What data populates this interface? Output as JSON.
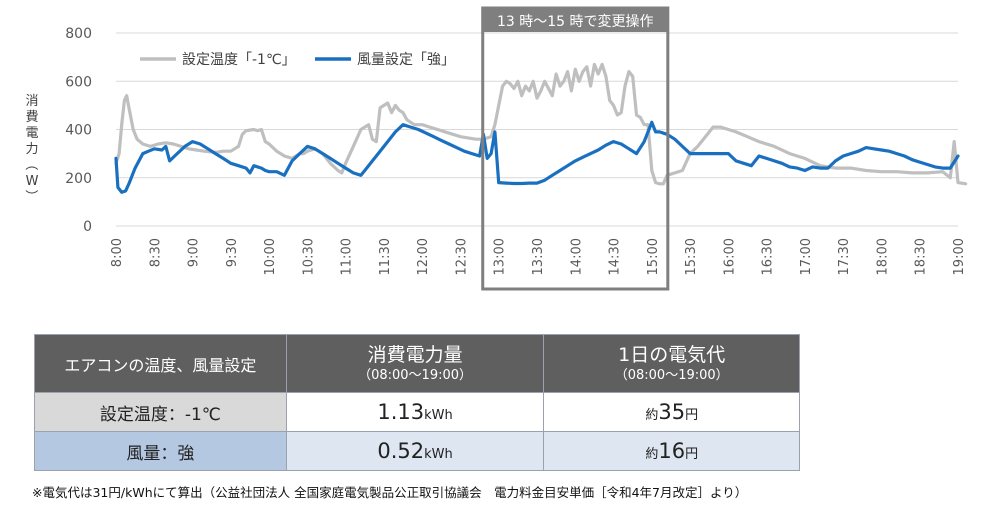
{
  "chart_data": {
    "type": "line",
    "ylabel": "消費電力（W）",
    "ylim": [
      0,
      800
    ],
    "yticks": [
      0,
      200,
      400,
      600,
      800
    ],
    "grid": true,
    "legend_placement": "top-left",
    "categories": [
      "8:00",
      "8:30",
      "9:00",
      "9:30",
      "10:00",
      "10:30",
      "11:00",
      "11:30",
      "12:00",
      "12:30",
      "13:00",
      "13:30",
      "14:00",
      "14:30",
      "15:00",
      "15:30",
      "16:00",
      "16:30",
      "17:00",
      "17:30",
      "18:00",
      "18:30",
      "19:00"
    ],
    "annotation": "13 時～15 時で変更操作",
    "annotation_range": [
      "13:00",
      "15:00"
    ],
    "series": [
      {
        "name": "設定温度「-1℃」",
        "color": "#bfbfbf",
        "points": [
          [
            0,
            260
          ],
          [
            0.08,
            300
          ],
          [
            0.15,
            420
          ],
          [
            0.22,
            520
          ],
          [
            0.28,
            540
          ],
          [
            0.35,
            480
          ],
          [
            0.45,
            400
          ],
          [
            0.55,
            360
          ],
          [
            0.7,
            340
          ],
          [
            0.9,
            330
          ],
          [
            1.1,
            340
          ],
          [
            1.3,
            345
          ],
          [
            1.5,
            340
          ],
          [
            1.7,
            330
          ],
          [
            1.9,
            320
          ],
          [
            2.1,
            315
          ],
          [
            2.3,
            310
          ],
          [
            2.6,
            305
          ],
          [
            2.8,
            310
          ],
          [
            3.0,
            310
          ],
          [
            3.2,
            330
          ],
          [
            3.3,
            380
          ],
          [
            3.4,
            395
          ],
          [
            3.6,
            400
          ],
          [
            3.7,
            395
          ],
          [
            3.8,
            400
          ],
          [
            3.9,
            350
          ],
          [
            4.0,
            340
          ],
          [
            4.2,
            310
          ],
          [
            4.4,
            290
          ],
          [
            4.6,
            280
          ],
          [
            4.8,
            300
          ],
          [
            4.9,
            300
          ],
          [
            5.0,
            310
          ],
          [
            5.2,
            320
          ],
          [
            5.4,
            300
          ],
          [
            5.6,
            260
          ],
          [
            5.8,
            230
          ],
          [
            5.9,
            220
          ],
          [
            6.0,
            260
          ],
          [
            6.2,
            330
          ],
          [
            6.4,
            400
          ],
          [
            6.6,
            420
          ],
          [
            6.7,
            360
          ],
          [
            6.8,
            350
          ],
          [
            6.9,
            490
          ],
          [
            7.0,
            500
          ],
          [
            7.1,
            510
          ],
          [
            7.2,
            470
          ],
          [
            7.3,
            500
          ],
          [
            7.4,
            480
          ],
          [
            7.5,
            470
          ],
          [
            7.6,
            440
          ],
          [
            7.7,
            430
          ],
          [
            7.8,
            420
          ],
          [
            8.0,
            420
          ],
          [
            8.2,
            410
          ],
          [
            8.5,
            395
          ],
          [
            8.8,
            380
          ],
          [
            9.0,
            370
          ],
          [
            9.2,
            365
          ],
          [
            9.4,
            360
          ],
          [
            9.6,
            360
          ],
          [
            9.8,
            370
          ],
          [
            9.9,
            420
          ],
          [
            10.0,
            500
          ],
          [
            10.1,
            580
          ],
          [
            10.2,
            600
          ],
          [
            10.3,
            590
          ],
          [
            10.4,
            570
          ],
          [
            10.5,
            600
          ],
          [
            10.6,
            540
          ],
          [
            10.7,
            580
          ],
          [
            10.8,
            560
          ],
          [
            10.9,
            600
          ],
          [
            11.0,
            530
          ],
          [
            11.1,
            560
          ],
          [
            11.2,
            600
          ],
          [
            11.3,
            570
          ],
          [
            11.4,
            540
          ],
          [
            11.5,
            630
          ],
          [
            11.6,
            580
          ],
          [
            11.7,
            600
          ],
          [
            11.8,
            640
          ],
          [
            11.9,
            560
          ],
          [
            12.0,
            650
          ],
          [
            12.1,
            600
          ],
          [
            12.2,
            640
          ],
          [
            12.3,
            660
          ],
          [
            12.4,
            580
          ],
          [
            12.5,
            670
          ],
          [
            12.6,
            630
          ],
          [
            12.7,
            670
          ],
          [
            12.8,
            620
          ],
          [
            12.9,
            520
          ],
          [
            13.0,
            500
          ],
          [
            13.1,
            460
          ],
          [
            13.2,
            470
          ],
          [
            13.3,
            580
          ],
          [
            13.4,
            640
          ],
          [
            13.5,
            620
          ],
          [
            13.6,
            460
          ],
          [
            13.7,
            450
          ],
          [
            13.8,
            420
          ],
          [
            13.9,
            420
          ],
          [
            14.0,
            230
          ],
          [
            14.1,
            180
          ],
          [
            14.2,
            175
          ],
          [
            14.3,
            175
          ],
          [
            14.4,
            210
          ],
          [
            14.6,
            220
          ],
          [
            14.8,
            230
          ],
          [
            15.0,
            300
          ],
          [
            15.2,
            330
          ],
          [
            15.4,
            370
          ],
          [
            15.6,
            410
          ],
          [
            15.8,
            410
          ],
          [
            16.0,
            400
          ],
          [
            16.2,
            390
          ],
          [
            16.5,
            370
          ],
          [
            16.8,
            350
          ],
          [
            17.2,
            330
          ],
          [
            17.6,
            300
          ],
          [
            18.0,
            280
          ],
          [
            18.4,
            250
          ],
          [
            18.8,
            240
          ],
          [
            19.2,
            240
          ],
          [
            19.6,
            230
          ],
          [
            20.0,
            225
          ],
          [
            20.4,
            225
          ],
          [
            20.8,
            220
          ],
          [
            21.2,
            220
          ],
          [
            21.6,
            225
          ],
          [
            21.8,
            200
          ],
          [
            21.9,
            350
          ],
          [
            22.0,
            180
          ],
          [
            22.2,
            175
          ]
        ]
      },
      {
        "name": "風量設定「強」",
        "color": "#1a70c0",
        "points": [
          [
            0,
            280
          ],
          [
            0.05,
            160
          ],
          [
            0.15,
            140
          ],
          [
            0.25,
            145
          ],
          [
            0.35,
            180
          ],
          [
            0.5,
            240
          ],
          [
            0.7,
            300
          ],
          [
            0.85,
            310
          ],
          [
            1.0,
            320
          ],
          [
            1.2,
            315
          ],
          [
            1.3,
            330
          ],
          [
            1.4,
            270
          ],
          [
            1.6,
            300
          ],
          [
            1.8,
            330
          ],
          [
            2.0,
            350
          ],
          [
            2.2,
            340
          ],
          [
            2.4,
            320
          ],
          [
            2.6,
            300
          ],
          [
            2.8,
            280
          ],
          [
            3.0,
            260
          ],
          [
            3.2,
            250
          ],
          [
            3.4,
            240
          ],
          [
            3.5,
            220
          ],
          [
            3.6,
            250
          ],
          [
            3.8,
            240
          ],
          [
            3.9,
            230
          ],
          [
            4.0,
            225
          ],
          [
            4.2,
            225
          ],
          [
            4.4,
            210
          ],
          [
            4.6,
            270
          ],
          [
            4.8,
            300
          ],
          [
            5.0,
            330
          ],
          [
            5.2,
            320
          ],
          [
            5.4,
            300
          ],
          [
            5.6,
            280
          ],
          [
            5.8,
            260
          ],
          [
            6.0,
            240
          ],
          [
            6.2,
            220
          ],
          [
            6.4,
            210
          ],
          [
            6.5,
            230
          ],
          [
            6.7,
            270
          ],
          [
            6.9,
            310
          ],
          [
            7.1,
            350
          ],
          [
            7.3,
            390
          ],
          [
            7.5,
            420
          ],
          [
            7.7,
            410
          ],
          [
            7.9,
            400
          ],
          [
            8.1,
            385
          ],
          [
            8.3,
            370
          ],
          [
            8.5,
            355
          ],
          [
            8.7,
            340
          ],
          [
            8.9,
            325
          ],
          [
            9.1,
            310
          ],
          [
            9.3,
            300
          ],
          [
            9.5,
            290
          ],
          [
            9.6,
            380
          ],
          [
            9.7,
            280
          ],
          [
            9.8,
            300
          ],
          [
            9.9,
            390
          ],
          [
            10.0,
            180
          ],
          [
            10.2,
            178
          ],
          [
            10.4,
            176
          ],
          [
            10.6,
            176
          ],
          [
            10.8,
            178
          ],
          [
            11.0,
            178
          ],
          [
            11.2,
            190
          ],
          [
            11.4,
            210
          ],
          [
            11.6,
            230
          ],
          [
            11.8,
            250
          ],
          [
            12.0,
            270
          ],
          [
            12.2,
            285
          ],
          [
            12.4,
            300
          ],
          [
            12.6,
            315
          ],
          [
            12.8,
            335
          ],
          [
            13.0,
            350
          ],
          [
            13.2,
            340
          ],
          [
            13.4,
            320
          ],
          [
            13.6,
            300
          ],
          [
            13.8,
            350
          ],
          [
            14.0,
            430
          ],
          [
            14.1,
            390
          ],
          [
            14.2,
            390
          ],
          [
            14.4,
            380
          ],
          [
            14.6,
            360
          ],
          [
            14.8,
            330
          ],
          [
            15.0,
            300
          ],
          [
            15.2,
            300
          ],
          [
            15.4,
            300
          ],
          [
            15.6,
            300
          ],
          [
            15.8,
            300
          ],
          [
            16.0,
            300
          ],
          [
            16.2,
            270
          ],
          [
            16.4,
            260
          ],
          [
            16.6,
            250
          ],
          [
            16.8,
            290
          ],
          [
            17.0,
            280
          ],
          [
            17.2,
            270
          ],
          [
            17.4,
            260
          ],
          [
            17.6,
            245
          ],
          [
            17.8,
            240
          ],
          [
            18.0,
            230
          ],
          [
            18.2,
            245
          ],
          [
            18.4,
            240
          ],
          [
            18.6,
            240
          ],
          [
            18.8,
            270
          ],
          [
            19.0,
            290
          ],
          [
            19.2,
            300
          ],
          [
            19.4,
            310
          ],
          [
            19.6,
            325
          ],
          [
            19.8,
            320
          ],
          [
            20.0,
            315
          ],
          [
            20.2,
            310
          ],
          [
            20.4,
            300
          ],
          [
            20.6,
            290
          ],
          [
            20.8,
            275
          ],
          [
            21.0,
            265
          ],
          [
            21.2,
            255
          ],
          [
            21.4,
            245
          ],
          [
            21.6,
            240
          ],
          [
            21.8,
            240
          ],
          [
            22.0,
            290
          ]
        ]
      }
    ]
  },
  "table": {
    "header": {
      "col1": "エアコンの温度、風量設定",
      "col2_main": "消費電力量",
      "col2_sub": "（08:00～19:00）",
      "col3_main": "1日の電気代",
      "col3_sub": "（08:00～19:00）"
    },
    "rows": [
      {
        "label": "設定温度：-1℃",
        "value": "1.13",
        "unit": "kWh",
        "cost_prefix": "約",
        "cost": "35",
        "cost_unit": "円"
      },
      {
        "label": "風量：強",
        "value": "0.52",
        "unit": "kWh",
        "cost_prefix": "約",
        "cost": "16",
        "cost_unit": "円"
      }
    ]
  },
  "footnote": "※電気代は31円/kWhにて算出（公益社団法人 全国家庭電気製品公正取引協議会　電力料金目安単価［令和4年7月改定］より）"
}
